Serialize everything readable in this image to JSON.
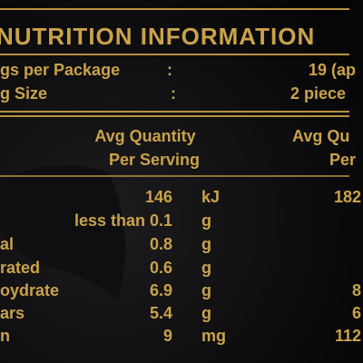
{
  "header": {
    "title": "NUTRITION INFORMATION"
  },
  "package": [
    {
      "label": "gs per Package",
      "colon": ":",
      "value": "19 (ap"
    },
    {
      "label": "g Size",
      "colon": ":",
      "value": "2 piece"
    }
  ],
  "table": {
    "headers": [
      {
        "line1": "Avg Quantity",
        "line2": "Per Serving"
      },
      {
        "line1": "Avg Qu",
        "line2": "Per"
      }
    ],
    "rows": [
      [
        null,
        "146",
        "kJ",
        "182"
      ],
      [
        null,
        "less than 0.1",
        "g",
        null
      ],
      [
        "al",
        "0.8",
        "g",
        null
      ],
      [
        "rated",
        "0.6",
        "g",
        null
      ],
      [
        "oydrate",
        "6.9",
        "g",
        "8"
      ],
      [
        "ars",
        "5.4",
        "g",
        "6"
      ],
      [
        "n",
        "9",
        "mg",
        "112"
      ]
    ]
  }
}
